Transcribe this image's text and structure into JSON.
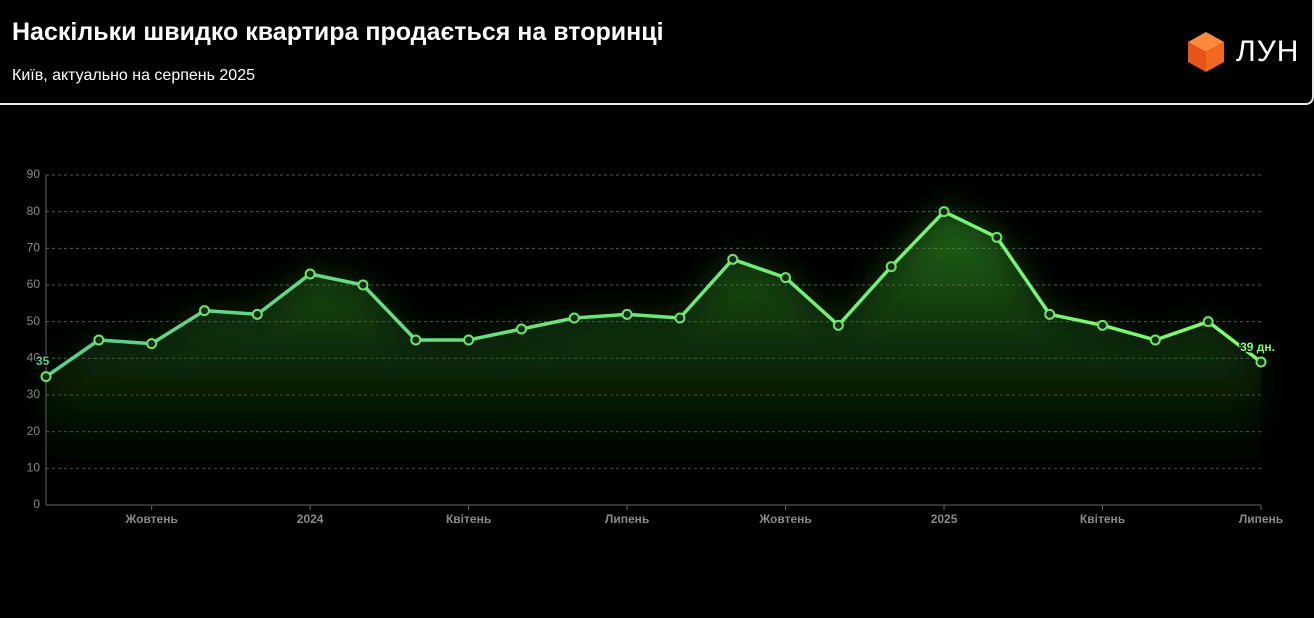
{
  "chart_data": {
    "type": "line",
    "title": "Наскільки швидко квартира продається на вторинці",
    "subtitle": "Київ, актуально на серпень 2025",
    "logo": "ЛУН",
    "categories": [
      null,
      null,
      "Жовтень",
      null,
      null,
      "2024",
      null,
      null,
      "Квітень",
      null,
      null,
      "Липень",
      null,
      null,
      "Жовтень",
      null,
      null,
      "2025",
      null,
      null,
      "Квітень",
      null,
      null,
      "Липень"
    ],
    "series": [
      {
        "name": null,
        "color": "#6ee66a",
        "values": [
          35,
          45,
          44,
          53,
          52,
          63,
          60,
          45,
          45,
          48,
          51,
          52,
          51,
          67,
          62,
          49,
          65,
          80,
          73,
          52,
          49,
          45,
          50,
          39
        ],
        "value_labels": [
          "35",
          null,
          null,
          null,
          null,
          null,
          null,
          null,
          null,
          null,
          null,
          null,
          null,
          null,
          null,
          null,
          null,
          null,
          null,
          null,
          null,
          null,
          null,
          "39 дн."
        ]
      }
    ],
    "ylim": [
      0,
      90
    ],
    "yticks": [
      0,
      10,
      20,
      30,
      40,
      50,
      60,
      70,
      80,
      90
    ],
    "grid": true
  }
}
